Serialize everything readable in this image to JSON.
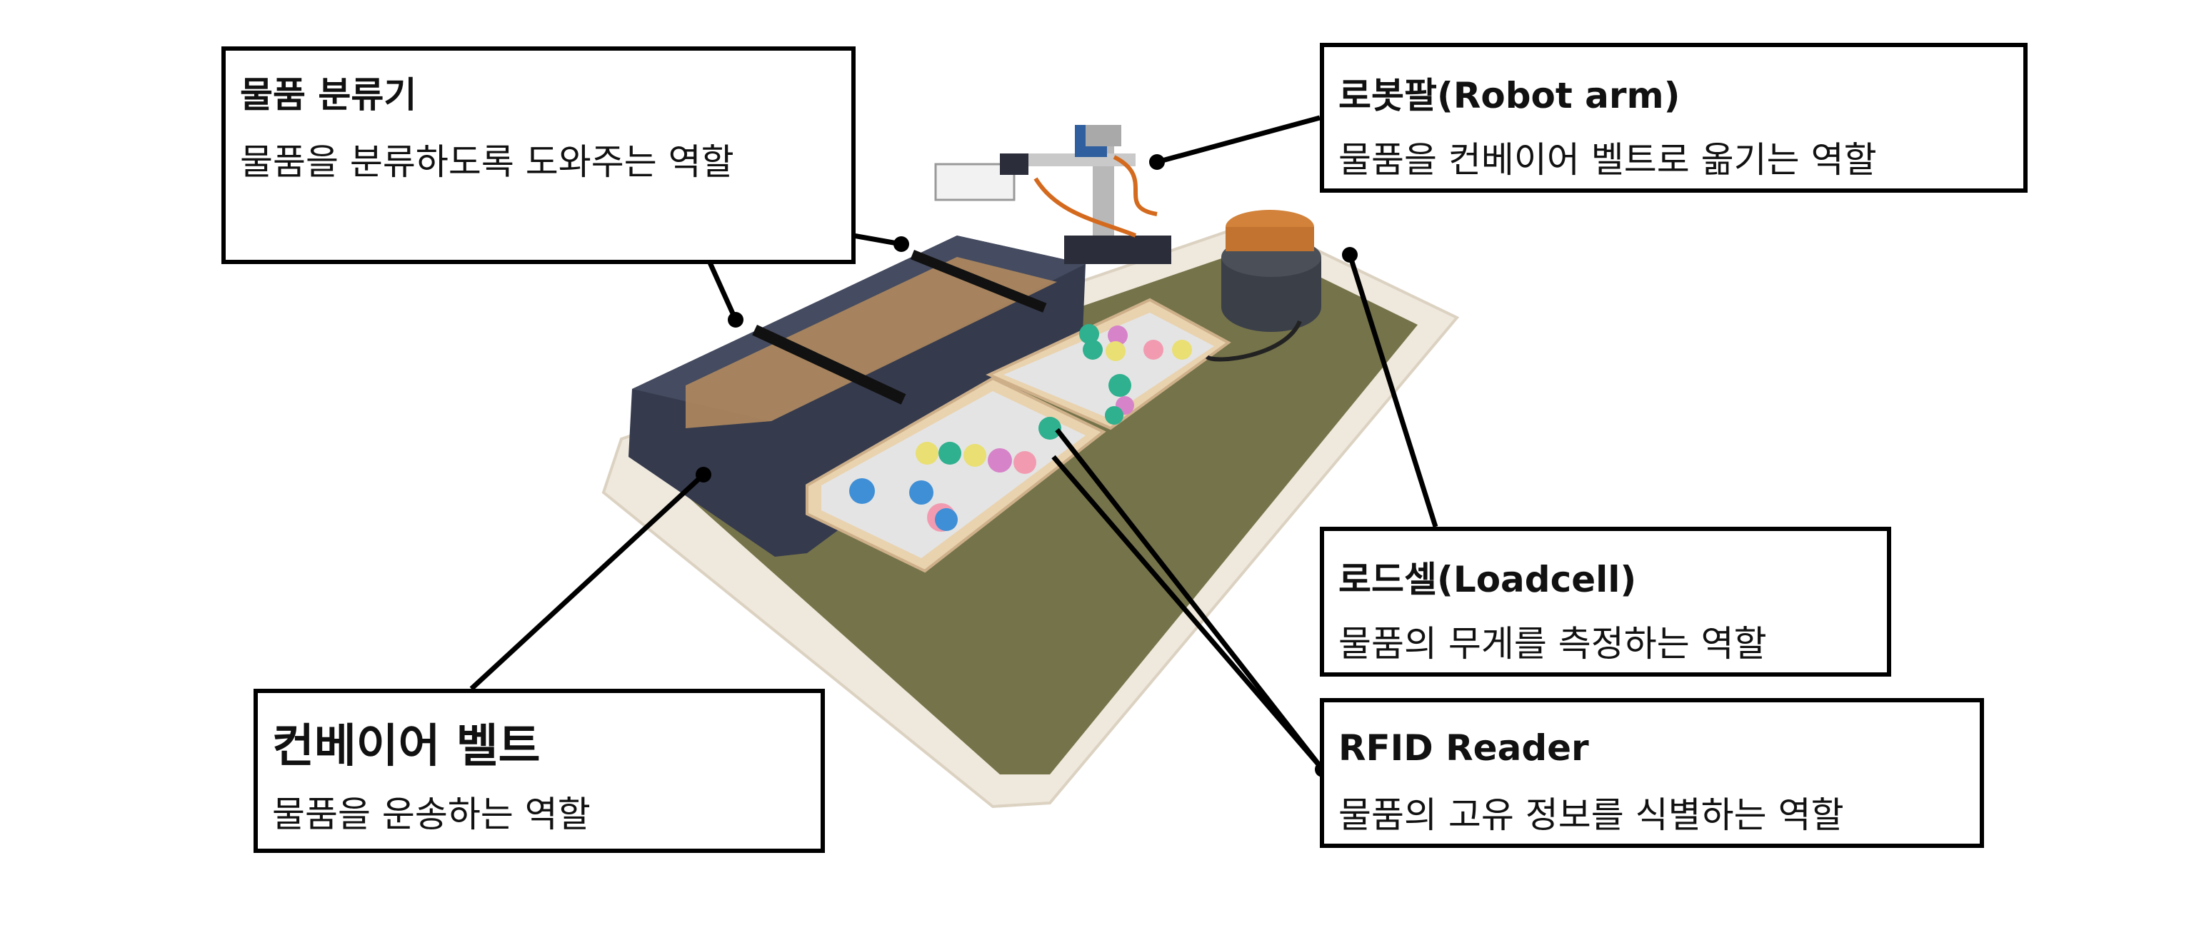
{
  "callouts": {
    "sorter": {
      "title": "물품 분류기",
      "description": "물품을 분류하도록 도와주는 역할"
    },
    "robot_arm": {
      "title": "로봇팔(Robot arm)",
      "description": "물품을 컨베이어 벨트로 옮기는 역할"
    },
    "loadcell": {
      "title": "로드셀(Loadcell)",
      "description": "물품의 무게를 측정하는 역할"
    },
    "rfid": {
      "title": "RFID Reader",
      "description": "물품의 고유 정보를 식별하는 역할"
    },
    "conveyor": {
      "title": "컨베이어 벨트",
      "description": "물품을 운송하는 역할"
    }
  },
  "colors": {
    "base_board": "#efe8dc",
    "mat": "#75734a",
    "conveyor_body": "#3a3f52",
    "belt_mesh": "#b08a5e",
    "tray": "#e9d2ae",
    "ball_colors": [
      "#3f8fd6",
      "#2fb08e",
      "#e9df72",
      "#d783c9",
      "#f29bb0"
    ]
  }
}
